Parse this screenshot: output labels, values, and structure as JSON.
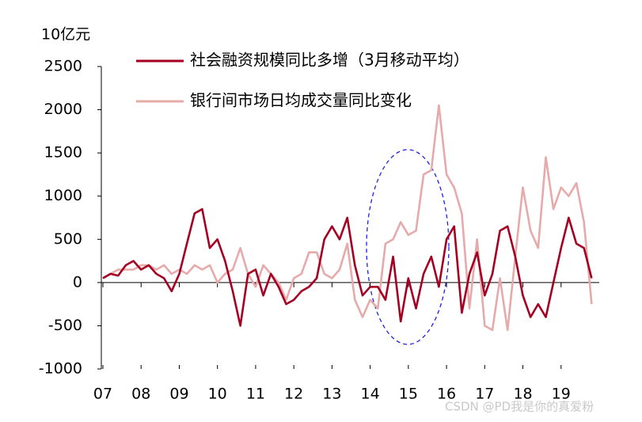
{
  "chart_data": {
    "type": "line",
    "unit_label": "10亿元",
    "x": [
      7.0,
      7.2,
      7.4,
      7.6,
      7.8,
      8.0,
      8.2,
      8.4,
      8.6,
      8.8,
      9.0,
      9.2,
      9.4,
      9.6,
      9.8,
      10.0,
      10.2,
      10.4,
      10.6,
      10.8,
      11.0,
      11.2,
      11.4,
      11.6,
      11.8,
      12.0,
      12.2,
      12.4,
      12.6,
      12.8,
      13.0,
      13.2,
      13.4,
      13.6,
      13.8,
      14.0,
      14.2,
      14.4,
      14.6,
      14.8,
      15.0,
      15.2,
      15.4,
      15.6,
      15.8,
      16.0,
      16.2,
      16.4,
      16.6,
      16.8,
      17.0,
      17.2,
      17.4,
      17.6,
      17.8,
      18.0,
      18.2,
      18.4,
      18.6,
      18.8,
      19.0,
      19.2,
      19.4,
      19.6,
      19.8
    ],
    "series": [
      {
        "name": "社会融资规模同比多增（3月移动平均）",
        "color": "#a50021",
        "values": [
          50,
          100,
          80,
          200,
          250,
          150,
          200,
          100,
          50,
          -100,
          100,
          450,
          800,
          850,
          400,
          500,
          250,
          -100,
          -500,
          100,
          150,
          -150,
          100,
          -50,
          -250,
          -200,
          -100,
          -50,
          50,
          500,
          650,
          500,
          750,
          200,
          -150,
          -50,
          -50,
          -200,
          300,
          -450,
          50,
          -300,
          100,
          300,
          -50,
          500,
          650,
          -350,
          100,
          350,
          -150,
          100,
          600,
          650,
          300,
          -150,
          -400,
          -250,
          -400,
          0,
          400,
          750,
          450,
          400,
          50
        ]
      },
      {
        "name": "银行间市场日均成交量同比变化",
        "color": "#e6aaaa",
        "values": [
          50,
          100,
          150,
          150,
          150,
          200,
          200,
          150,
          200,
          100,
          150,
          100,
          200,
          150,
          200,
          0,
          100,
          150,
          400,
          100,
          -50,
          200,
          100,
          0,
          -200,
          50,
          100,
          350,
          350,
          100,
          50,
          150,
          450,
          -200,
          -400,
          -200,
          -300,
          450,
          500,
          700,
          550,
          600,
          1250,
          1300,
          2050,
          1250,
          1100,
          800,
          -300,
          500,
          -500,
          -550,
          50,
          -550,
          300,
          1100,
          600,
          400,
          1450,
          850,
          1100,
          1000,
          1150,
          700,
          -250
        ]
      }
    ],
    "xlim": [
      7,
      20
    ],
    "xticks": [
      {
        "value": 7,
        "label": "07"
      },
      {
        "value": 8,
        "label": "08"
      },
      {
        "value": 9,
        "label": "09"
      },
      {
        "value": 10,
        "label": "10"
      },
      {
        "value": 11,
        "label": "11"
      },
      {
        "value": 12,
        "label": "12"
      },
      {
        "value": 13,
        "label": "13"
      },
      {
        "value": 14,
        "label": "14"
      },
      {
        "value": 15,
        "label": "15"
      },
      {
        "value": 16,
        "label": "16"
      },
      {
        "value": 17,
        "label": "17"
      },
      {
        "value": 18,
        "label": "18"
      },
      {
        "value": 19,
        "label": "19"
      }
    ],
    "ylim": [
      -1000,
      2500
    ],
    "yticks": [
      -1000,
      -500,
      0,
      500,
      1000,
      1500,
      2000,
      2500
    ],
    "watermark": "CSDN @PD我是你的真爱粉"
  }
}
